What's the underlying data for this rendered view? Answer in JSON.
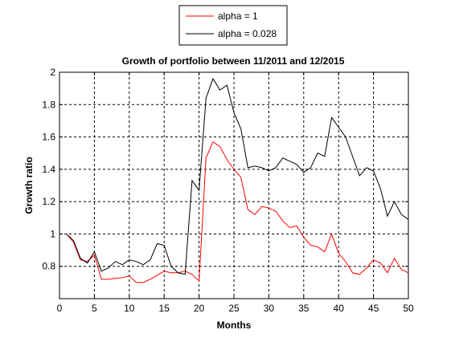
{
  "chart_data": {
    "type": "line",
    "title": "Growth of portfolio between 11/2011 and 12/2015",
    "xlabel": "Months",
    "ylabel": "Growth ratio",
    "xlim": [
      0,
      50
    ],
    "ylim": [
      0.6,
      2
    ],
    "xticks": [
      0,
      5,
      10,
      15,
      20,
      25,
      30,
      35,
      40,
      45,
      50
    ],
    "yticks": [
      0.8,
      1,
      1.2,
      1.4,
      1.6,
      1.8,
      2
    ],
    "ytick_labels": [
      "0.8",
      "1",
      "1.2",
      "1.4",
      "1.6",
      "1.8",
      "2"
    ],
    "grid": true,
    "legend_position": "top-center-outside",
    "x": [
      1,
      2,
      3,
      4,
      5,
      6,
      7,
      8,
      9,
      10,
      11,
      12,
      13,
      14,
      15,
      16,
      17,
      18,
      19,
      20,
      21,
      22,
      23,
      24,
      25,
      26,
      27,
      28,
      29,
      30,
      31,
      32,
      33,
      34,
      35,
      36,
      37,
      38,
      39,
      40,
      41,
      42,
      43,
      44,
      45,
      46,
      47,
      48,
      49,
      50
    ],
    "series": [
      {
        "name": "alpha = 1",
        "color": "#ff0000",
        "values": [
          1.0,
          0.95,
          0.84,
          0.83,
          0.87,
          0.72,
          0.72,
          0.725,
          0.73,
          0.74,
          0.7,
          0.7,
          0.72,
          0.745,
          0.77,
          0.76,
          0.76,
          0.77,
          0.75,
          0.71,
          1.47,
          1.57,
          1.54,
          1.46,
          1.4,
          1.35,
          1.15,
          1.12,
          1.17,
          1.16,
          1.14,
          1.08,
          1.04,
          1.05,
          0.98,
          0.93,
          0.92,
          0.89,
          1.0,
          0.88,
          0.83,
          0.76,
          0.75,
          0.79,
          0.84,
          0.82,
          0.76,
          0.85,
          0.78,
          0.76
        ]
      },
      {
        "name": "alpha = 0.028",
        "color": "#000000",
        "values": [
          1.0,
          0.96,
          0.85,
          0.82,
          0.89,
          0.77,
          0.79,
          0.83,
          0.81,
          0.84,
          0.83,
          0.81,
          0.84,
          0.94,
          0.93,
          0.8,
          0.76,
          0.75,
          1.33,
          1.27,
          1.84,
          1.96,
          1.89,
          1.92,
          1.75,
          1.65,
          1.41,
          1.42,
          1.41,
          1.39,
          1.41,
          1.47,
          1.45,
          1.43,
          1.38,
          1.41,
          1.5,
          1.48,
          1.72,
          1.66,
          1.6,
          1.48,
          1.36,
          1.41,
          1.39,
          1.28,
          1.11,
          1.2,
          1.12,
          1.09
        ]
      }
    ]
  }
}
